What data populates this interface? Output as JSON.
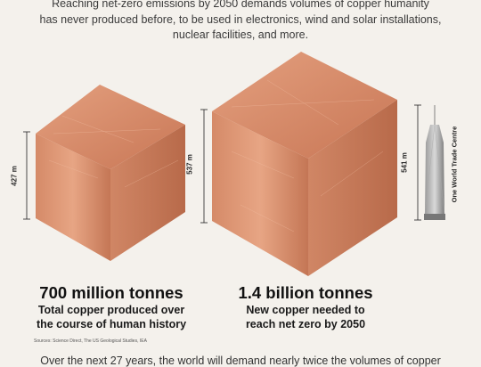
{
  "intro_lines": [
    "Reaching net-zero emissions by 2050 demands volumes of copper humanity",
    "has never produced before, to be used in electronics, wind and solar installations,",
    "nuclear facilities, and more."
  ],
  "cube_small": {
    "height_label": "427 m",
    "amount": "700 million tonnes",
    "desc_line1": "Total copper produced over",
    "desc_line2": "the course of human history"
  },
  "cube_large": {
    "height_label": "537 m",
    "amount": "1.4 billion tonnes",
    "desc_line1": "New copper needed to",
    "desc_line2": "reach net zero by 2050"
  },
  "tower": {
    "height_label": "541 m",
    "name": "One World Trade Centre"
  },
  "sources": "Sources: Science Direct, The US Geological Studies, IEA",
  "outro": "Over the next 27 years, the world will demand nearly twice the volumes of copper",
  "colors": {
    "copper_top": "#d88d6c",
    "copper_front": "#c97c5c",
    "copper_side": "#b9694a",
    "background": "#f4f1ec"
  }
}
